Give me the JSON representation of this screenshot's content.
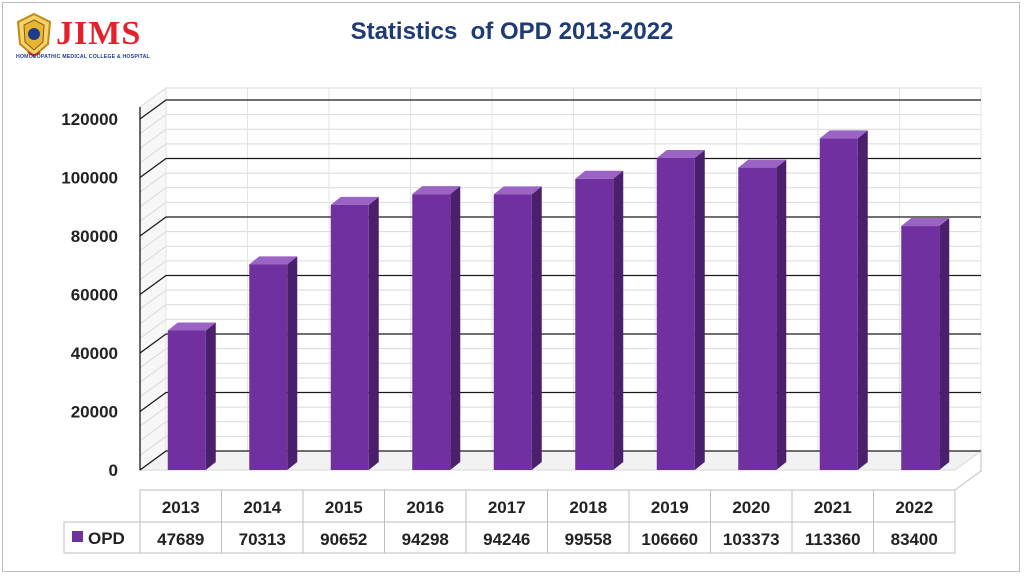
{
  "logo": {
    "name": "JIMS",
    "tagline": "HOMOEOPATHIC MEDICAL COLLEGE & HOSPITAL"
  },
  "chart_data": {
    "type": "bar",
    "title": "Statistics  of OPD 2013-2022",
    "categories": [
      "2013",
      "2014",
      "2015",
      "2016",
      "2017",
      "2018",
      "2019",
      "2020",
      "2021",
      "2022"
    ],
    "series": [
      {
        "name": "OPD",
        "color": "#7030a0",
        "values": [
          47689,
          70313,
          90652,
          94298,
          94246,
          99558,
          106660,
          103373,
          113360,
          83400
        ]
      }
    ],
    "ylim": [
      0,
      120000
    ],
    "yticks": [
      "0",
      "20000",
      "40000",
      "60000",
      "80000",
      "100000",
      "120000"
    ],
    "grid": true,
    "style": "3d-column",
    "legend": "data-table"
  }
}
